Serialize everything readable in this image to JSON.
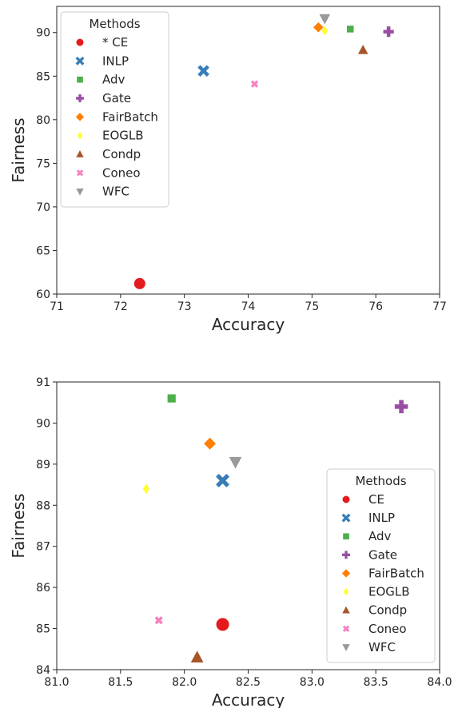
{
  "colors": {
    "CE": "#e41a1c",
    "INLP": "#377eb8",
    "Adv": "#4daf4a",
    "Gate": "#984ea3",
    "FairBatch": "#ff7f00",
    "EOGLB": "#ffff33",
    "Condp": "#a65628",
    "Coneo": "#f781bf",
    "WFC": "#999999"
  },
  "chart_data": [
    {
      "type": "scatter",
      "xlabel": "Accuracy",
      "ylabel": "Fairness",
      "xlim": [
        71,
        77
      ],
      "ylim": [
        60,
        93
      ],
      "xticks": [
        "71",
        "72",
        "73",
        "74",
        "75",
        "76",
        "77"
      ],
      "yticks": [
        "60",
        "65",
        "70",
        "75",
        "80",
        "85",
        "90"
      ],
      "legend": {
        "title": "Methods",
        "placement": "upper-left"
      },
      "series": [
        {
          "name": "* CE",
          "marker": "circle",
          "x": 72.3,
          "y": 61.2
        },
        {
          "name": "INLP",
          "marker": "x-thick",
          "x": 73.3,
          "y": 85.6
        },
        {
          "name": "Adv",
          "marker": "square",
          "x": 75.6,
          "y": 90.4
        },
        {
          "name": "Gate",
          "marker": "plus-thick",
          "x": 76.2,
          "y": 90.1
        },
        {
          "name": "FairBatch",
          "marker": "diamond",
          "x": 75.1,
          "y": 90.6
        },
        {
          "name": "EOGLB",
          "marker": "thin-diamond",
          "x": 75.2,
          "y": 90.2
        },
        {
          "name": "Condp",
          "marker": "triangle-up",
          "x": 75.8,
          "y": 88.0
        },
        {
          "name": "Coneo",
          "marker": "x-small",
          "x": 74.1,
          "y": 84.1
        },
        {
          "name": "WFC",
          "marker": "triangle-down",
          "x": 75.2,
          "y": 91.6
        }
      ]
    },
    {
      "type": "scatter",
      "xlabel": "Accuracy",
      "ylabel": "Fairness",
      "xlim": [
        81.0,
        84.0
      ],
      "ylim": [
        84,
        91
      ],
      "xticks": [
        "81.0",
        "81.5",
        "82.0",
        "82.5",
        "83.0",
        "83.5",
        "84.0"
      ],
      "yticks": [
        "84",
        "85",
        "86",
        "87",
        "88",
        "89",
        "90",
        "91"
      ],
      "legend": {
        "title": "Methods",
        "placement": "lower-right"
      },
      "series": [
        {
          "name": "CE",
          "marker": "circle",
          "x": 82.3,
          "y": 85.1
        },
        {
          "name": "INLP",
          "marker": "x-thick",
          "x": 82.3,
          "y": 88.6
        },
        {
          "name": "Adv",
          "marker": "square",
          "x": 81.9,
          "y": 90.6
        },
        {
          "name": "Gate",
          "marker": "plus-thick",
          "x": 83.7,
          "y": 90.4
        },
        {
          "name": "FairBatch",
          "marker": "diamond",
          "x": 82.2,
          "y": 89.5
        },
        {
          "name": "EOGLB",
          "marker": "thin-diamond",
          "x": 81.7,
          "y": 88.4
        },
        {
          "name": "Condp",
          "marker": "triangle-up",
          "x": 82.1,
          "y": 84.3
        },
        {
          "name": "Coneo",
          "marker": "x-small",
          "x": 81.8,
          "y": 85.2
        },
        {
          "name": "WFC",
          "marker": "triangle-down",
          "x": 82.4,
          "y": 89.05
        }
      ]
    }
  ]
}
